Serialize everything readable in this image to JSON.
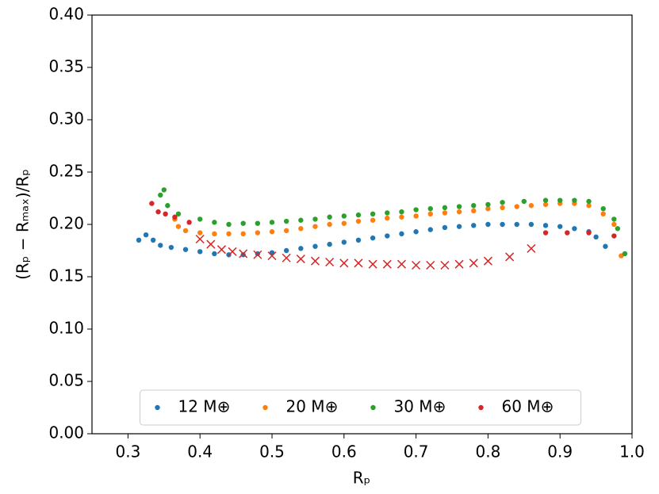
{
  "chart_data": {
    "type": "scatter",
    "xlabel": "Rₚ",
    "ylabel": "(Rₚ − Rₘₐₓ)/Rₚ",
    "xlim": [
      0.25,
      1.0
    ],
    "xticks": [
      0.3,
      0.4,
      0.5,
      0.6,
      0.7,
      0.8,
      0.9,
      {
        "value": 1,
        "label": "1.0"
      }
    ],
    "ylim": [
      0,
      0.4
    ],
    "yticks": [
      {
        "value": 0,
        "label": "0.00"
      },
      0.05,
      {
        "value": 0.1,
        "label": "0.10"
      },
      0.15,
      {
        "value": 0.2,
        "label": "0.20"
      },
      0.25,
      {
        "value": 0.3,
        "label": "0.30"
      },
      0.35,
      {
        "value": 0.4,
        "label": "0.40"
      }
    ],
    "legend": "lower center",
    "series": [
      {
        "name": "12 M⊕",
        "color": "#1f77b4",
        "marker": "o",
        "x": [
          0.315,
          0.325,
          0.335,
          0.345,
          0.36,
          0.38,
          0.4,
          0.42,
          0.44,
          0.46,
          0.48,
          0.5,
          0.52,
          0.54,
          0.56,
          0.58,
          0.6,
          0.62,
          0.64,
          0.66,
          0.68,
          0.7,
          0.72,
          0.74,
          0.76,
          0.78,
          0.8,
          0.82,
          0.84,
          0.86,
          0.88,
          0.9,
          0.92,
          0.94,
          0.95,
          0.963
        ],
        "values": [
          0.185,
          0.19,
          0.185,
          0.18,
          0.178,
          0.176,
          0.174,
          0.172,
          0.171,
          0.171,
          0.172,
          0.173,
          0.175,
          0.177,
          0.179,
          0.181,
          0.183,
          0.185,
          0.187,
          0.189,
          0.191,
          0.193,
          0.195,
          0.197,
          0.198,
          0.199,
          0.2,
          0.2,
          0.2,
          0.2,
          0.199,
          0.198,
          0.196,
          0.193,
          0.188,
          0.179
        ]
      },
      {
        "name": "20 M⊕",
        "color": "#ff7f0e",
        "marker": "o",
        "x": [
          0.365,
          0.37,
          0.38,
          0.4,
          0.42,
          0.44,
          0.46,
          0.48,
          0.5,
          0.52,
          0.54,
          0.56,
          0.58,
          0.6,
          0.62,
          0.64,
          0.66,
          0.68,
          0.7,
          0.72,
          0.74,
          0.76,
          0.78,
          0.8,
          0.82,
          0.84,
          0.86,
          0.88,
          0.9,
          0.92,
          0.94,
          0.96,
          0.975,
          0.985
        ],
        "values": [
          0.205,
          0.198,
          0.194,
          0.192,
          0.191,
          0.191,
          0.191,
          0.192,
          0.193,
          0.194,
          0.196,
          0.198,
          0.2,
          0.201,
          0.203,
          0.204,
          0.206,
          0.207,
          0.208,
          0.21,
          0.211,
          0.212,
          0.213,
          0.215,
          0.216,
          0.217,
          0.218,
          0.219,
          0.22,
          0.22,
          0.218,
          0.21,
          0.2,
          0.17
        ]
      },
      {
        "name": "30 M⊕",
        "color": "#2ca02c",
        "marker": "o",
        "x": [
          0.345,
          0.35,
          0.355,
          0.37,
          0.4,
          0.42,
          0.44,
          0.46,
          0.48,
          0.5,
          0.52,
          0.54,
          0.56,
          0.58,
          0.6,
          0.62,
          0.64,
          0.66,
          0.68,
          0.7,
          0.72,
          0.74,
          0.76,
          0.78,
          0.8,
          0.82,
          0.85,
          0.88,
          0.9,
          0.92,
          0.94,
          0.96,
          0.975,
          0.98,
          0.99
        ],
        "values": [
          0.228,
          0.233,
          0.218,
          0.21,
          0.205,
          0.202,
          0.2,
          0.201,
          0.201,
          0.202,
          0.203,
          0.204,
          0.205,
          0.207,
          0.208,
          0.209,
          0.21,
          0.211,
          0.212,
          0.214,
          0.215,
          0.216,
          0.217,
          0.218,
          0.219,
          0.221,
          0.222,
          0.223,
          0.223,
          0.223,
          0.222,
          0.215,
          0.205,
          0.196,
          0.172
        ]
      },
      {
        "name": "60 M⊕",
        "color": "#d62728",
        "marker": "o",
        "x": [
          0.333,
          0.342,
          0.352,
          0.365,
          0.385,
          0.88,
          0.91,
          0.94,
          0.975
        ],
        "values": [
          0.22,
          0.212,
          0.21,
          0.207,
          0.202,
          0.192,
          0.192,
          0.192,
          0.189
        ]
      },
      {
        "color": "#d62728",
        "marker": "x",
        "x": [
          0.4,
          0.415,
          0.43,
          0.445,
          0.46,
          0.48,
          0.5,
          0.52,
          0.54,
          0.56,
          0.58,
          0.6,
          0.62,
          0.64,
          0.66,
          0.68,
          0.7,
          0.72,
          0.74,
          0.76,
          0.78,
          0.8,
          0.83,
          0.86
        ],
        "values": [
          0.186,
          0.181,
          0.176,
          0.174,
          0.172,
          0.171,
          0.17,
          0.168,
          0.167,
          0.165,
          0.164,
          0.163,
          0.163,
          0.162,
          0.162,
          0.162,
          0.161,
          0.161,
          0.161,
          0.162,
          0.163,
          0.165,
          0.169,
          0.177
        ]
      }
    ]
  }
}
